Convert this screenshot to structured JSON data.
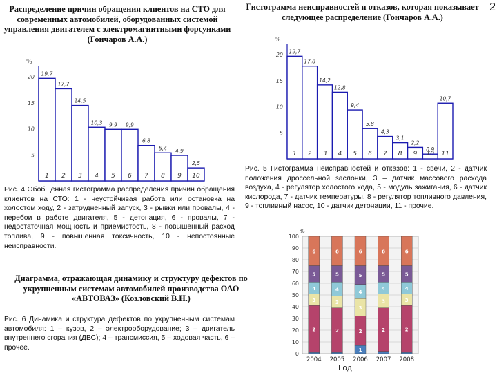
{
  "page_number": "2",
  "left_heading": "Распределение причин обращения клиентов на СТО для современных автомобилей, оборудованных системой управления двигателем с электромагнитными форсунками (Гончаров А.А.)",
  "right_heading": "Гистограмма неисправностей и отказов, которая показывает следующее распределение (Гончаров А.А.)",
  "fig4_caption": "Рис. 4 Обобщенная гистограмма распределения причин обращения клиентов на СТО: 1 - неустойчивая работа или остановка на холостом ходу, 2 - затрудненный запуск, 3 - рывки или провалы, 4 - перебои в работе двигателя, 5 - детонация, 6 - провалы, 7 - недостаточная мощность и приемистость, 8 - повышенный расход топлива, 9 - повышенная токсичность, 10 - непостоянные неисправности.",
  "fig5_caption": "Рис. 5 Гистограмма неисправностей и отказов: 1 - свечи, 2 - датчик положения дроссельной заслонки, 3 – датчик массового расхода воздуха, 4 - регулятор холостого хода, 5 - модуль зажигания, 6 - датчик кислорода, 7 - датчик температуры, 8 - регулятор топливного давления, 9 - топливный насос, 10 - датчик детонации, 11 - прочие.",
  "middle_heading": "Диаграмма, отражающая динамику и структуру дефектов по укрупненным системам автомобилей производства ОАО «АВТОВАЗ» (Козловский В.Н.)",
  "fig6_caption": "Рис. 6 Динамика и структура дефектов по укрупненным системам автомобиля: 1 – кузов, 2 – электрооборудование; 3 – двигатель внутреннего сгорания (ДВС); 4 – трансмиссия, 5 – ходовая часть, 6 – прочее.",
  "chart_data": [
    {
      "type": "bar",
      "id": "fig4",
      "ylabel": "%",
      "ylim": [
        0,
        22
      ],
      "yticks": [
        5,
        10,
        15,
        20
      ],
      "categories": [
        "1",
        "2",
        "3",
        "4",
        "5",
        "6",
        "7",
        "8",
        "9",
        "10"
      ],
      "values": [
        19.7,
        17.7,
        14.5,
        10.3,
        9.9,
        9.9,
        6.8,
        5.4,
        4.9,
        2.5
      ],
      "value_labels": [
        "19,7",
        "17,7",
        "14,5",
        "10,3",
        "9,9",
        "9,9",
        "6,8",
        "5,4",
        "4,9",
        "2,5"
      ]
    },
    {
      "type": "bar",
      "id": "fig5",
      "ylabel": "%",
      "ylim": [
        0,
        22
      ],
      "yticks": [
        5,
        10,
        15,
        20
      ],
      "categories": [
        "1",
        "2",
        "3",
        "4",
        "5",
        "6",
        "7",
        "8",
        "9",
        "10",
        "11"
      ],
      "values": [
        19.7,
        17.8,
        14.2,
        12.8,
        9.4,
        5.8,
        4.3,
        3.1,
        2.2,
        0.9,
        10.7
      ],
      "value_labels": [
        "19,7",
        "17,8",
        "14,2",
        "12,8",
        "9,4",
        "5,8",
        "4,3",
        "3,1",
        "2,2",
        "0,9",
        "10,7"
      ]
    },
    {
      "type": "bar",
      "stacked": true,
      "id": "fig6",
      "ylabel": "%",
      "xlabel": "Год",
      "ylim": [
        0,
        100
      ],
      "yticks": [
        0,
        10,
        20,
        30,
        40,
        50,
        60,
        70,
        80,
        90,
        100
      ],
      "categories": [
        "2004",
        "2005",
        "2006",
        "2007",
        "2008"
      ],
      "series": [
        {
          "name": "1",
          "color": "#4a7fbd",
          "values": [
            1,
            1,
            7,
            2,
            1
          ]
        },
        {
          "name": "2",
          "color": "#b5436b",
          "values": [
            40,
            38,
            25,
            37,
            40
          ]
        },
        {
          "name": "3",
          "color": "#eae4a6",
          "values": [
            10,
            10,
            15,
            12,
            10
          ]
        },
        {
          "name": "4",
          "color": "#8fc9d8",
          "values": [
            10,
            12,
            12,
            10,
            10
          ]
        },
        {
          "name": "5",
          "color": "#7a5a96",
          "values": [
            14,
            14,
            16,
            14,
            14
          ]
        },
        {
          "name": "6",
          "color": "#d8765a",
          "values": [
            25,
            25,
            25,
            25,
            25
          ]
        }
      ]
    }
  ]
}
